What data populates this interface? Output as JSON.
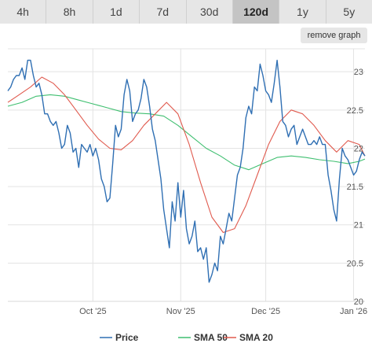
{
  "toolbar": {
    "ranges": [
      "4h",
      "8h",
      "1d",
      "7d",
      "30d",
      "120d",
      "1y",
      "5y"
    ],
    "active_range": "120d",
    "remove_label": "remove graph"
  },
  "chart_data": {
    "type": "line",
    "title": "",
    "xlabel": "",
    "ylabel": "",
    "ylim": [
      20,
      23.3
    ],
    "y_ticks": [
      20,
      20.5,
      21,
      21.5,
      22,
      22.5,
      23
    ],
    "y_tick_labels": [
      "20",
      "20.5",
      "21",
      "21.5",
      "22",
      "22.5",
      "23"
    ],
    "x_ticks": [
      {
        "label": "Oct '25",
        "x": 30
      },
      {
        "label": "Nov '25",
        "x": 61
      },
      {
        "label": "Dec '25",
        "x": 91
      },
      {
        "label": "Jan '26",
        "x": 122
      }
    ],
    "x_range": [
      0,
      126
    ],
    "grid": true,
    "legend": "bottom",
    "series": [
      {
        "name": "Price",
        "color": "#2f6fb3",
        "x": [
          0,
          1,
          2,
          3,
          4,
          5,
          6,
          7,
          8,
          9,
          10,
          11,
          12,
          13,
          14,
          15,
          16,
          17,
          18,
          19,
          20,
          21,
          22,
          23,
          24,
          25,
          26,
          27,
          28,
          29,
          30,
          31,
          32,
          33,
          34,
          35,
          36,
          37,
          38,
          39,
          40,
          41,
          42,
          43,
          44,
          45,
          46,
          47,
          48,
          49,
          50,
          51,
          52,
          53,
          54,
          55,
          56,
          57,
          58,
          59,
          60,
          61,
          62,
          63,
          64,
          65,
          66,
          67,
          68,
          69,
          70,
          71,
          72,
          73,
          74,
          75,
          76,
          77,
          78,
          79,
          80,
          81,
          82,
          83,
          84,
          85,
          86,
          87,
          88,
          89,
          90,
          91,
          92,
          93,
          94,
          95,
          96,
          97,
          98,
          99,
          100,
          101,
          102,
          103,
          104,
          105,
          106,
          107,
          108,
          109,
          110,
          111,
          112,
          113,
          114,
          115,
          116,
          117,
          118,
          119,
          120,
          121,
          122,
          123,
          124,
          125,
          126
        ],
        "values": [
          22.75,
          22.8,
          22.9,
          22.95,
          22.95,
          23.05,
          22.9,
          23.15,
          23.15,
          22.95,
          22.8,
          22.85,
          22.7,
          22.45,
          22.45,
          22.35,
          22.3,
          22.35,
          22.2,
          22,
          22.05,
          22.3,
          22.2,
          21.95,
          22,
          21.75,
          22.05,
          22,
          21.95,
          22.05,
          21.9,
          22,
          21.85,
          21.6,
          21.5,
          21.3,
          21.35,
          21.8,
          22.3,
          22.15,
          22.25,
          22.7,
          22.9,
          22.75,
          22.35,
          22.45,
          22.5,
          22.65,
          22.9,
          22.8,
          22.55,
          22.25,
          22.1,
          21.85,
          21.6,
          21.2,
          20.95,
          20.7,
          21.3,
          21.05,
          21.55,
          21.1,
          21.45,
          20.95,
          20.75,
          20.85,
          21.05,
          20.65,
          20.7,
          20.55,
          20.7,
          20.25,
          20.35,
          20.5,
          20.4,
          20.85,
          20.75,
          20.95,
          21.15,
          21.05,
          21.35,
          21.65,
          21.75,
          22,
          22.4,
          22.55,
          22.45,
          22.8,
          22.75,
          23.1,
          22.95,
          22.75,
          22.7,
          22.6,
          22.85,
          23.15,
          22.8,
          22.35,
          22.3,
          22.15,
          22.25,
          22.3,
          22.05,
          22.15,
          22.25,
          22.15,
          22.05,
          22.05,
          22.1,
          22.05,
          22.15,
          22.05,
          22.05,
          21.65,
          21.45,
          21.2,
          21.05,
          21.6,
          22,
          21.9,
          21.85,
          21.75,
          21.65,
          21.7,
          21.85,
          21.95,
          21.9
        ],
        "show_points": false
      },
      {
        "name": "SMA 50",
        "color": "#3fbf70",
        "x": [
          0,
          5,
          10,
          15,
          20,
          25,
          30,
          35,
          40,
          45,
          50,
          55,
          60,
          65,
          70,
          75,
          80,
          85,
          90,
          95,
          100,
          105,
          110,
          115,
          120,
          124,
          126
        ],
        "values": [
          22.55,
          22.6,
          22.68,
          22.7,
          22.68,
          22.63,
          22.58,
          22.53,
          22.48,
          22.46,
          22.45,
          22.42,
          22.3,
          22.15,
          22,
          21.9,
          21.78,
          21.72,
          21.8,
          21.88,
          21.9,
          21.88,
          21.85,
          21.83,
          21.8,
          21.83,
          21.86
        ]
      },
      {
        "name": "SMA 20",
        "color": "#e05a4e",
        "x": [
          0,
          4,
          8,
          12,
          16,
          20,
          24,
          28,
          32,
          36,
          40,
          44,
          48,
          52,
          56,
          60,
          64,
          68,
          72,
          76,
          80,
          84,
          88,
          92,
          96,
          100,
          104,
          108,
          112,
          116,
          120,
          124,
          126
        ],
        "values": [
          22.6,
          22.7,
          22.8,
          22.93,
          22.85,
          22.7,
          22.5,
          22.3,
          22.12,
          22,
          21.98,
          22.1,
          22.3,
          22.45,
          22.6,
          22.45,
          22.05,
          21.55,
          21.1,
          20.9,
          20.95,
          21.25,
          21.65,
          22.05,
          22.35,
          22.5,
          22.45,
          22.3,
          22.1,
          21.95,
          22.1,
          22.05,
          21.9
        ]
      }
    ]
  }
}
